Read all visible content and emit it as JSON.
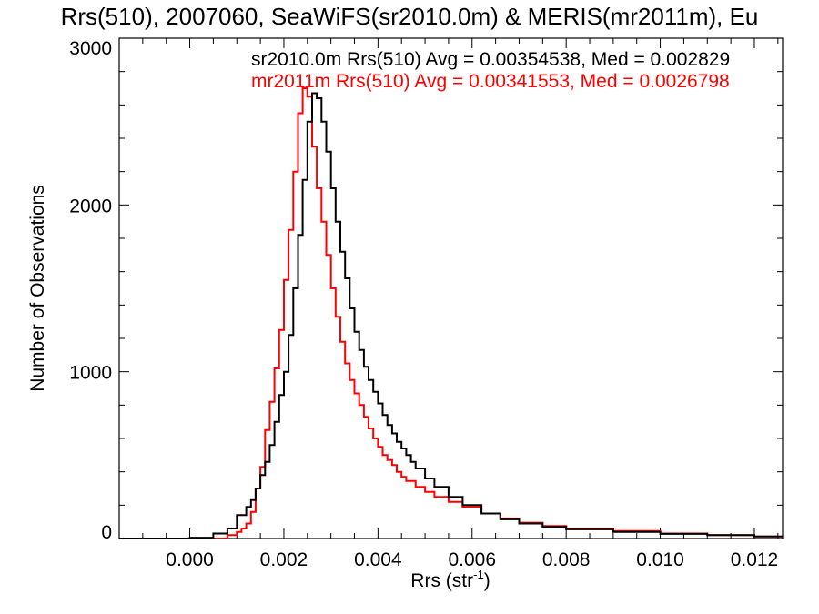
{
  "chart_data": {
    "type": "line",
    "step": true,
    "title": "Rrs(510), 2007060, SeaWiFS(sr2010.0m) & MERIS(mr2011m), Eu",
    "xlabel": "Rrs (str",
    "xlabel_sup": "-1",
    "xlabel_close": ")",
    "ylabel": "Number of Observations",
    "xlim": [
      -0.0015,
      0.0126
    ],
    "ylim": [
      0,
      3000
    ],
    "xticks": [
      0.0,
      0.002,
      0.004,
      0.006,
      0.008,
      0.01,
      0.012
    ],
    "xtick_labels": [
      "0.000",
      "0.002",
      "0.004",
      "0.006",
      "0.008",
      "0.010",
      "0.012"
    ],
    "yticks": [
      0,
      1000,
      2000,
      3000
    ],
    "ytick_labels": [
      "0",
      "1000",
      "2000",
      "3000"
    ],
    "grid": false,
    "legend_placement": "top-right",
    "series": [
      {
        "name": "sr2010.0m",
        "label": "sr2010.0m Rrs(510) Avg = 0.00354538, Med = 0.002829",
        "color": "#000000",
        "points": [
          [
            -0.0015,
            0
          ],
          [
            0.0,
            5
          ],
          [
            0.0005,
            30
          ],
          [
            0.0008,
            60
          ],
          [
            0.001,
            140
          ],
          [
            0.0012,
            190
          ],
          [
            0.0013,
            230
          ],
          [
            0.0014,
            300
          ],
          [
            0.0015,
            380
          ],
          [
            0.0016,
            460
          ],
          [
            0.0017,
            560
          ],
          [
            0.0018,
            700
          ],
          [
            0.0019,
            860
          ],
          [
            0.002,
            1000
          ],
          [
            0.0021,
            1220
          ],
          [
            0.0022,
            1500
          ],
          [
            0.0023,
            1820
          ],
          [
            0.0024,
            2150
          ],
          [
            0.0025,
            2500
          ],
          [
            0.0026,
            2670
          ],
          [
            0.0027,
            2640
          ],
          [
            0.0028,
            2500
          ],
          [
            0.0029,
            2320
          ],
          [
            0.003,
            2100
          ],
          [
            0.0031,
            1900
          ],
          [
            0.0032,
            1720
          ],
          [
            0.0033,
            1560
          ],
          [
            0.0034,
            1380
          ],
          [
            0.0035,
            1240
          ],
          [
            0.0036,
            1130
          ],
          [
            0.0037,
            1030
          ],
          [
            0.0038,
            950
          ],
          [
            0.0039,
            880
          ],
          [
            0.004,
            810
          ],
          [
            0.0041,
            740
          ],
          [
            0.0042,
            680
          ],
          [
            0.0043,
            630
          ],
          [
            0.0044,
            580
          ],
          [
            0.0045,
            540
          ],
          [
            0.0046,
            500
          ],
          [
            0.0047,
            460
          ],
          [
            0.0048,
            420
          ],
          [
            0.005,
            360
          ],
          [
            0.0052,
            310
          ],
          [
            0.0055,
            250
          ],
          [
            0.0058,
            200
          ],
          [
            0.0062,
            150
          ],
          [
            0.0066,
            115
          ],
          [
            0.007,
            90
          ],
          [
            0.0075,
            70
          ],
          [
            0.008,
            55
          ],
          [
            0.009,
            40
          ],
          [
            0.01,
            28
          ],
          [
            0.011,
            20
          ],
          [
            0.012,
            12
          ],
          [
            0.0126,
            8
          ]
        ]
      },
      {
        "name": "mr2011m",
        "label": "mr2011m Rrs(510) Avg = 0.00341553, Med = 0.0026798",
        "color": "#ff0000",
        "points": [
          [
            -0.0015,
            0
          ],
          [
            0.0,
            0
          ],
          [
            0.0008,
            20
          ],
          [
            0.001,
            40
          ],
          [
            0.0011,
            60
          ],
          [
            0.0012,
            90
          ],
          [
            0.0013,
            160
          ],
          [
            0.0014,
            300
          ],
          [
            0.0015,
            430
          ],
          [
            0.0016,
            650
          ],
          [
            0.0017,
            820
          ],
          [
            0.0018,
            1020
          ],
          [
            0.0019,
            1250
          ],
          [
            0.002,
            1550
          ],
          [
            0.0021,
            1850
          ],
          [
            0.0022,
            2200
          ],
          [
            0.0023,
            2550
          ],
          [
            0.0024,
            2700
          ],
          [
            0.0025,
            2650
          ],
          [
            0.0026,
            2350
          ],
          [
            0.0027,
            2100
          ],
          [
            0.0028,
            1900
          ],
          [
            0.0029,
            1700
          ],
          [
            0.003,
            1500
          ],
          [
            0.0031,
            1330
          ],
          [
            0.0032,
            1180
          ],
          [
            0.0033,
            1050
          ],
          [
            0.0034,
            950
          ],
          [
            0.0035,
            870
          ],
          [
            0.0036,
            800
          ],
          [
            0.0037,
            730
          ],
          [
            0.0038,
            660
          ],
          [
            0.0039,
            600
          ],
          [
            0.004,
            550
          ],
          [
            0.0041,
            500
          ],
          [
            0.0042,
            470
          ],
          [
            0.0043,
            440
          ],
          [
            0.0044,
            400
          ],
          [
            0.0045,
            370
          ],
          [
            0.0046,
            345
          ],
          [
            0.0048,
            310
          ],
          [
            0.005,
            280
          ],
          [
            0.0052,
            250
          ],
          [
            0.0055,
            220
          ],
          [
            0.0058,
            190
          ],
          [
            0.0062,
            150
          ],
          [
            0.0066,
            120
          ],
          [
            0.007,
            95
          ],
          [
            0.0075,
            75
          ],
          [
            0.008,
            60
          ],
          [
            0.009,
            45
          ],
          [
            0.01,
            30
          ],
          [
            0.011,
            20
          ],
          [
            0.012,
            12
          ],
          [
            0.0126,
            8
          ]
        ]
      }
    ]
  }
}
